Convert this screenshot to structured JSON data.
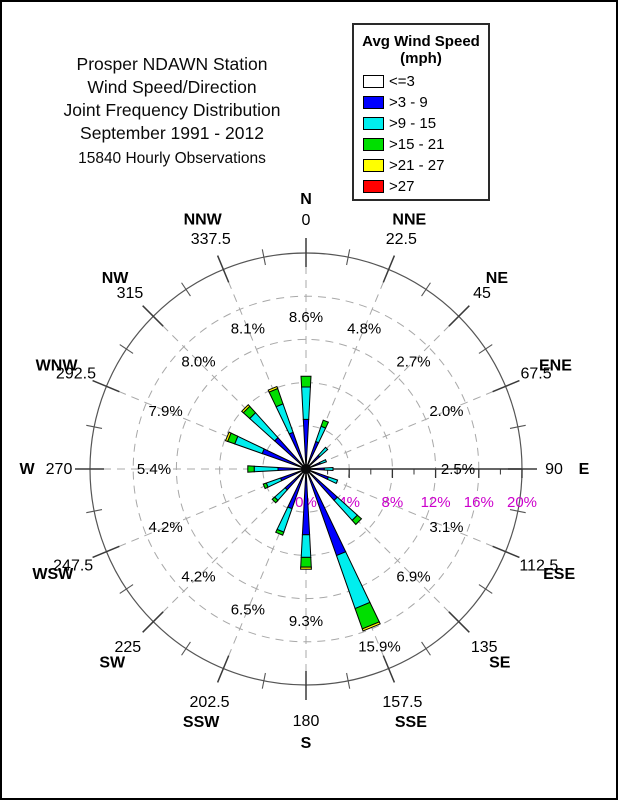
{
  "title": {
    "lines": [
      "Prosper NDAWN Station",
      "Wind Speed/Direction",
      "Joint Frequency Distribution",
      "September 1991 - 2012"
    ],
    "observations": "15840 Hourly Observations"
  },
  "legend": {
    "title_lines": [
      "Avg Wind Speed",
      "(mph)"
    ],
    "items": [
      {
        "label": "<=3",
        "color": "#FFFFFF"
      },
      {
        "label": ">3 - 9",
        "color": "#0000FF"
      },
      {
        "label": ">9 - 15",
        "color": "#00EEEE"
      },
      {
        "label": ">15 - 21",
        "color": "#00DF00"
      },
      {
        "label": ">21 - 27",
        "color": "#FFFF00"
      },
      {
        "label": ">27",
        "color": "#FF0000"
      }
    ]
  },
  "chart_data": {
    "type": "wind-rose stacked polar bar",
    "title": "Wind Speed/Direction Joint Frequency Distribution",
    "units": "percent of hourly observations",
    "radial_axis": {
      "min": 0,
      "max": 20,
      "tick_step_pct": 4,
      "tick_labels": [
        "0%",
        "4%",
        "8%",
        "12%",
        "16%",
        "20%"
      ],
      "label_color": "#CC00CC",
      "rings_pct": [
        4,
        8,
        12,
        16,
        20
      ],
      "grid_style": "dashed grey rings and spokes, solid outer ring"
    },
    "speed_bins_mph": [
      "<=3",
      ">3 - 9",
      ">9 - 15",
      ">15 - 21",
      ">21 - 27",
      ">27"
    ],
    "bin_colors": [
      "#FFFFFF",
      "#0000FF",
      "#00EEEE",
      "#00DF00",
      "#FFFF00",
      "#FF0000"
    ],
    "directions": [
      {
        "name": "N",
        "degrees": "0",
        "total_label": "8.6%",
        "total_pct": 8.6,
        "by_speed_pct": [
          0,
          4.6,
          3.0,
          1.0,
          0,
          0
        ]
      },
      {
        "name": "NNE",
        "degrees": "22.5",
        "total_label": "4.8%",
        "total_pct": 4.8,
        "by_speed_pct": [
          0,
          2.7,
          1.5,
          0.6,
          0,
          0
        ]
      },
      {
        "name": "NE",
        "degrees": "45",
        "total_label": "2.7%",
        "total_pct": 2.7,
        "by_speed_pct": [
          0,
          1.7,
          1.0,
          0,
          0,
          0
        ]
      },
      {
        "name": "ENE",
        "degrees": "67.5",
        "total_label": "2.0%",
        "total_pct": 2.0,
        "by_speed_pct": [
          0,
          1.4,
          0.6,
          0,
          0,
          0
        ]
      },
      {
        "name": "E",
        "degrees": "90",
        "total_label": "2.5%",
        "total_pct": 2.5,
        "by_speed_pct": [
          0,
          1.7,
          0.8,
          0,
          0,
          0
        ]
      },
      {
        "name": "ESE",
        "degrees": "112.5",
        "total_label": "3.1%",
        "total_pct": 3.1,
        "by_speed_pct": [
          0,
          2.2,
          0.9,
          0,
          0,
          0
        ]
      },
      {
        "name": "SE",
        "degrees": "135",
        "total_label": "6.9%",
        "total_pct": 6.9,
        "by_speed_pct": [
          0,
          3.9,
          2.5,
          0.5,
          0,
          0
        ]
      },
      {
        "name": "SSE",
        "degrees": "157.5",
        "total_label": "15.9%",
        "total_pct": 15.9,
        "by_speed_pct": [
          0,
          8.5,
          5.2,
          2.0,
          0.2,
          0
        ]
      },
      {
        "name": "S",
        "degrees": "180",
        "total_label": "9.3%",
        "total_pct": 9.3,
        "by_speed_pct": [
          0,
          6.1,
          2.1,
          0.9,
          0.2,
          0
        ]
      },
      {
        "name": "SSW",
        "degrees": "202.5",
        "total_label": "6.5%",
        "total_pct": 6.5,
        "by_speed_pct": [
          0,
          3.9,
          2.3,
          0.3,
          0,
          0
        ]
      },
      {
        "name": "SW",
        "degrees": "225",
        "total_label": "4.2%",
        "total_pct": 4.2,
        "by_speed_pct": [
          0,
          2.6,
          1.3,
          0.3,
          0,
          0
        ]
      },
      {
        "name": "WSW",
        "degrees": "247.5",
        "total_label": "4.2%",
        "total_pct": 4.2,
        "by_speed_pct": [
          0,
          2.5,
          1.4,
          0.3,
          0,
          0
        ]
      },
      {
        "name": "W",
        "degrees": "270",
        "total_label": "5.4%",
        "total_pct": 5.4,
        "by_speed_pct": [
          0,
          2.6,
          2.2,
          0.6,
          0,
          0
        ]
      },
      {
        "name": "WNW",
        "degrees": "292.5",
        "total_label": "7.9%",
        "total_pct": 7.9,
        "by_speed_pct": [
          0,
          4.3,
          2.7,
          0.7,
          0.2,
          0
        ]
      },
      {
        "name": "NW",
        "degrees": "315",
        "total_label": "8.0%",
        "total_pct": 8.0,
        "by_speed_pct": [
          0,
          3.9,
          3.1,
          0.8,
          0.2,
          0
        ]
      },
      {
        "name": "NNW",
        "degrees": "337.5",
        "total_label": "8.1%",
        "total_pct": 8.1,
        "by_speed_pct": [
          0,
          3.6,
          2.8,
          1.5,
          0.2,
          0
        ]
      }
    ]
  }
}
